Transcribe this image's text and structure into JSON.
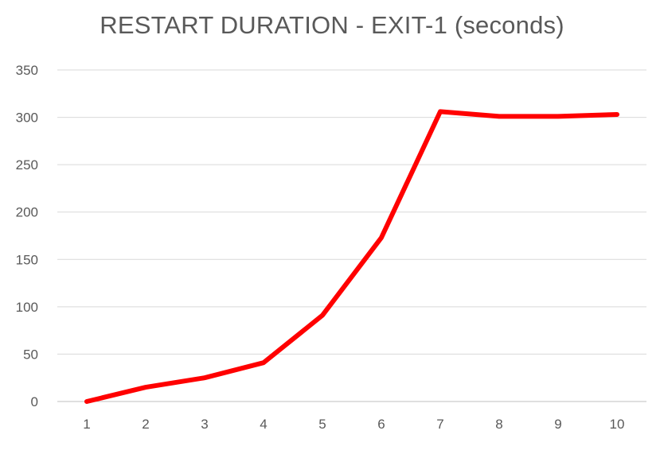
{
  "chart_data": {
    "type": "line",
    "title": "RESTART DURATION - EXIT-1 (seconds)",
    "xlabel": "",
    "ylabel": "",
    "categories": [
      "1",
      "2",
      "3",
      "4",
      "5",
      "6",
      "7",
      "8",
      "9",
      "10"
    ],
    "series": [
      {
        "values": [
          0,
          15,
          25,
          41,
          91,
          173,
          306,
          301,
          301,
          303
        ],
        "color": "#ff0000"
      }
    ],
    "ylim": [
      0,
      350
    ],
    "yticks": [
      0,
      50,
      100,
      150,
      200,
      250,
      300,
      350
    ],
    "grid": true,
    "legend": "none"
  }
}
